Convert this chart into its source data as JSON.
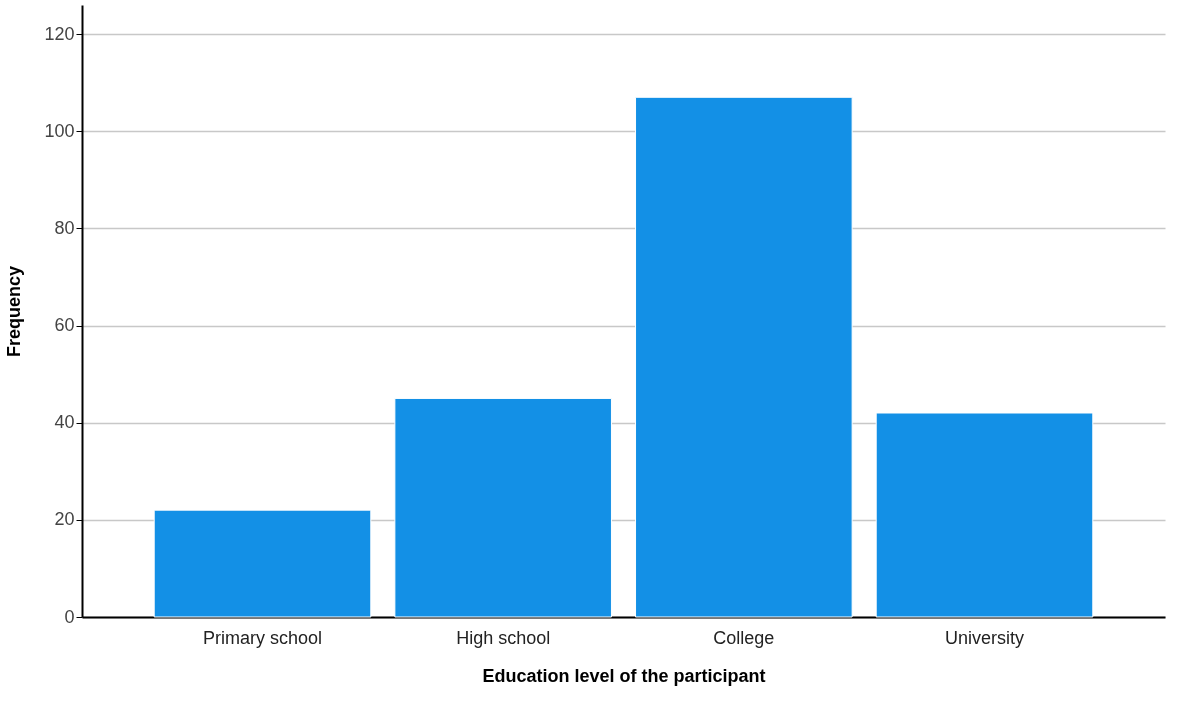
{
  "chart_data": {
    "type": "bar",
    "xlabel": "Education level of the participant",
    "ylabel": "Frequency",
    "categories": [
      "Primary school",
      "High school",
      "College",
      "University"
    ],
    "values": [
      22,
      45,
      107,
      42
    ],
    "color": "#1390e6",
    "ylim": [
      0,
      126
    ],
    "yticks": [
      0,
      20,
      40,
      60,
      80,
      100,
      120
    ],
    "grid": "y"
  }
}
